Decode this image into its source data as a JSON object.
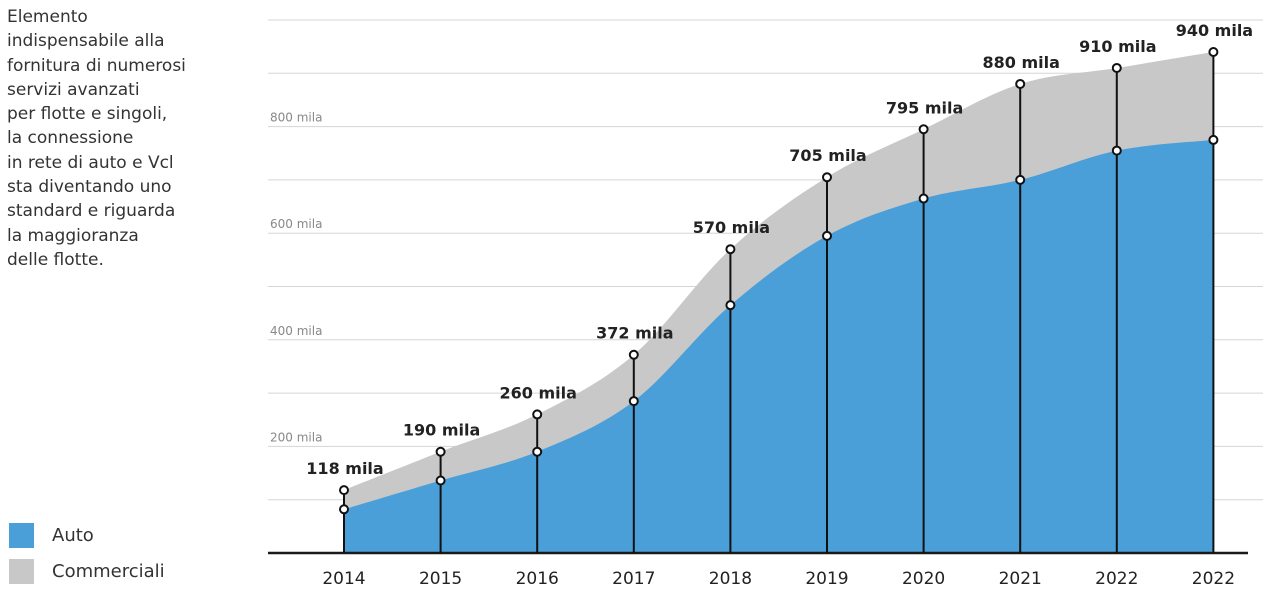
{
  "intro_text": "Elemento\nindispensabile alla\nfornitura di numerosi\nservizi avanzati\nper flotte e singoli,\nla connessione\nin rete di auto e Vcl\nsta diventando uno\nstandard e riguarda\nla maggioranza\ndelle flotte.",
  "colors": {
    "auto": "#4a9fd9",
    "commerciali": "#c8c8c8",
    "gridline": "#d5d5d5",
    "text_dark": "#222222",
    "axis_text": "#888888"
  },
  "chart_data": {
    "type": "area",
    "categories": [
      "2014",
      "2015",
      "2016",
      "2017",
      "2018",
      "2019",
      "2020",
      "2021",
      "2022",
      "2022"
    ],
    "series": [
      {
        "name": "Auto",
        "values": [
          82,
          136,
          190,
          285,
          465,
          595,
          665,
          700,
          755,
          775
        ]
      },
      {
        "name": "Commerciali",
        "values": [
          36,
          54,
          70,
          87,
          105,
          110,
          130,
          180,
          155,
          165
        ]
      }
    ],
    "total_labels": [
      "118 mila",
      "190 mila",
      "260 mila",
      "372 mila",
      "570 mila",
      "705 mila",
      "795 mila",
      "880 mila",
      "910 mila",
      "940 mila"
    ],
    "y_ticks": [
      {
        "value": 200,
        "label": "200 mila"
      },
      {
        "value": 400,
        "label": "400 mila"
      },
      {
        "value": 600,
        "label": "600 mila"
      },
      {
        "value": 800,
        "label": "800 mila"
      }
    ],
    "ylim": [
      0,
      1000
    ],
    "grid": true,
    "legend": "bottom-left",
    "stacked": true
  }
}
